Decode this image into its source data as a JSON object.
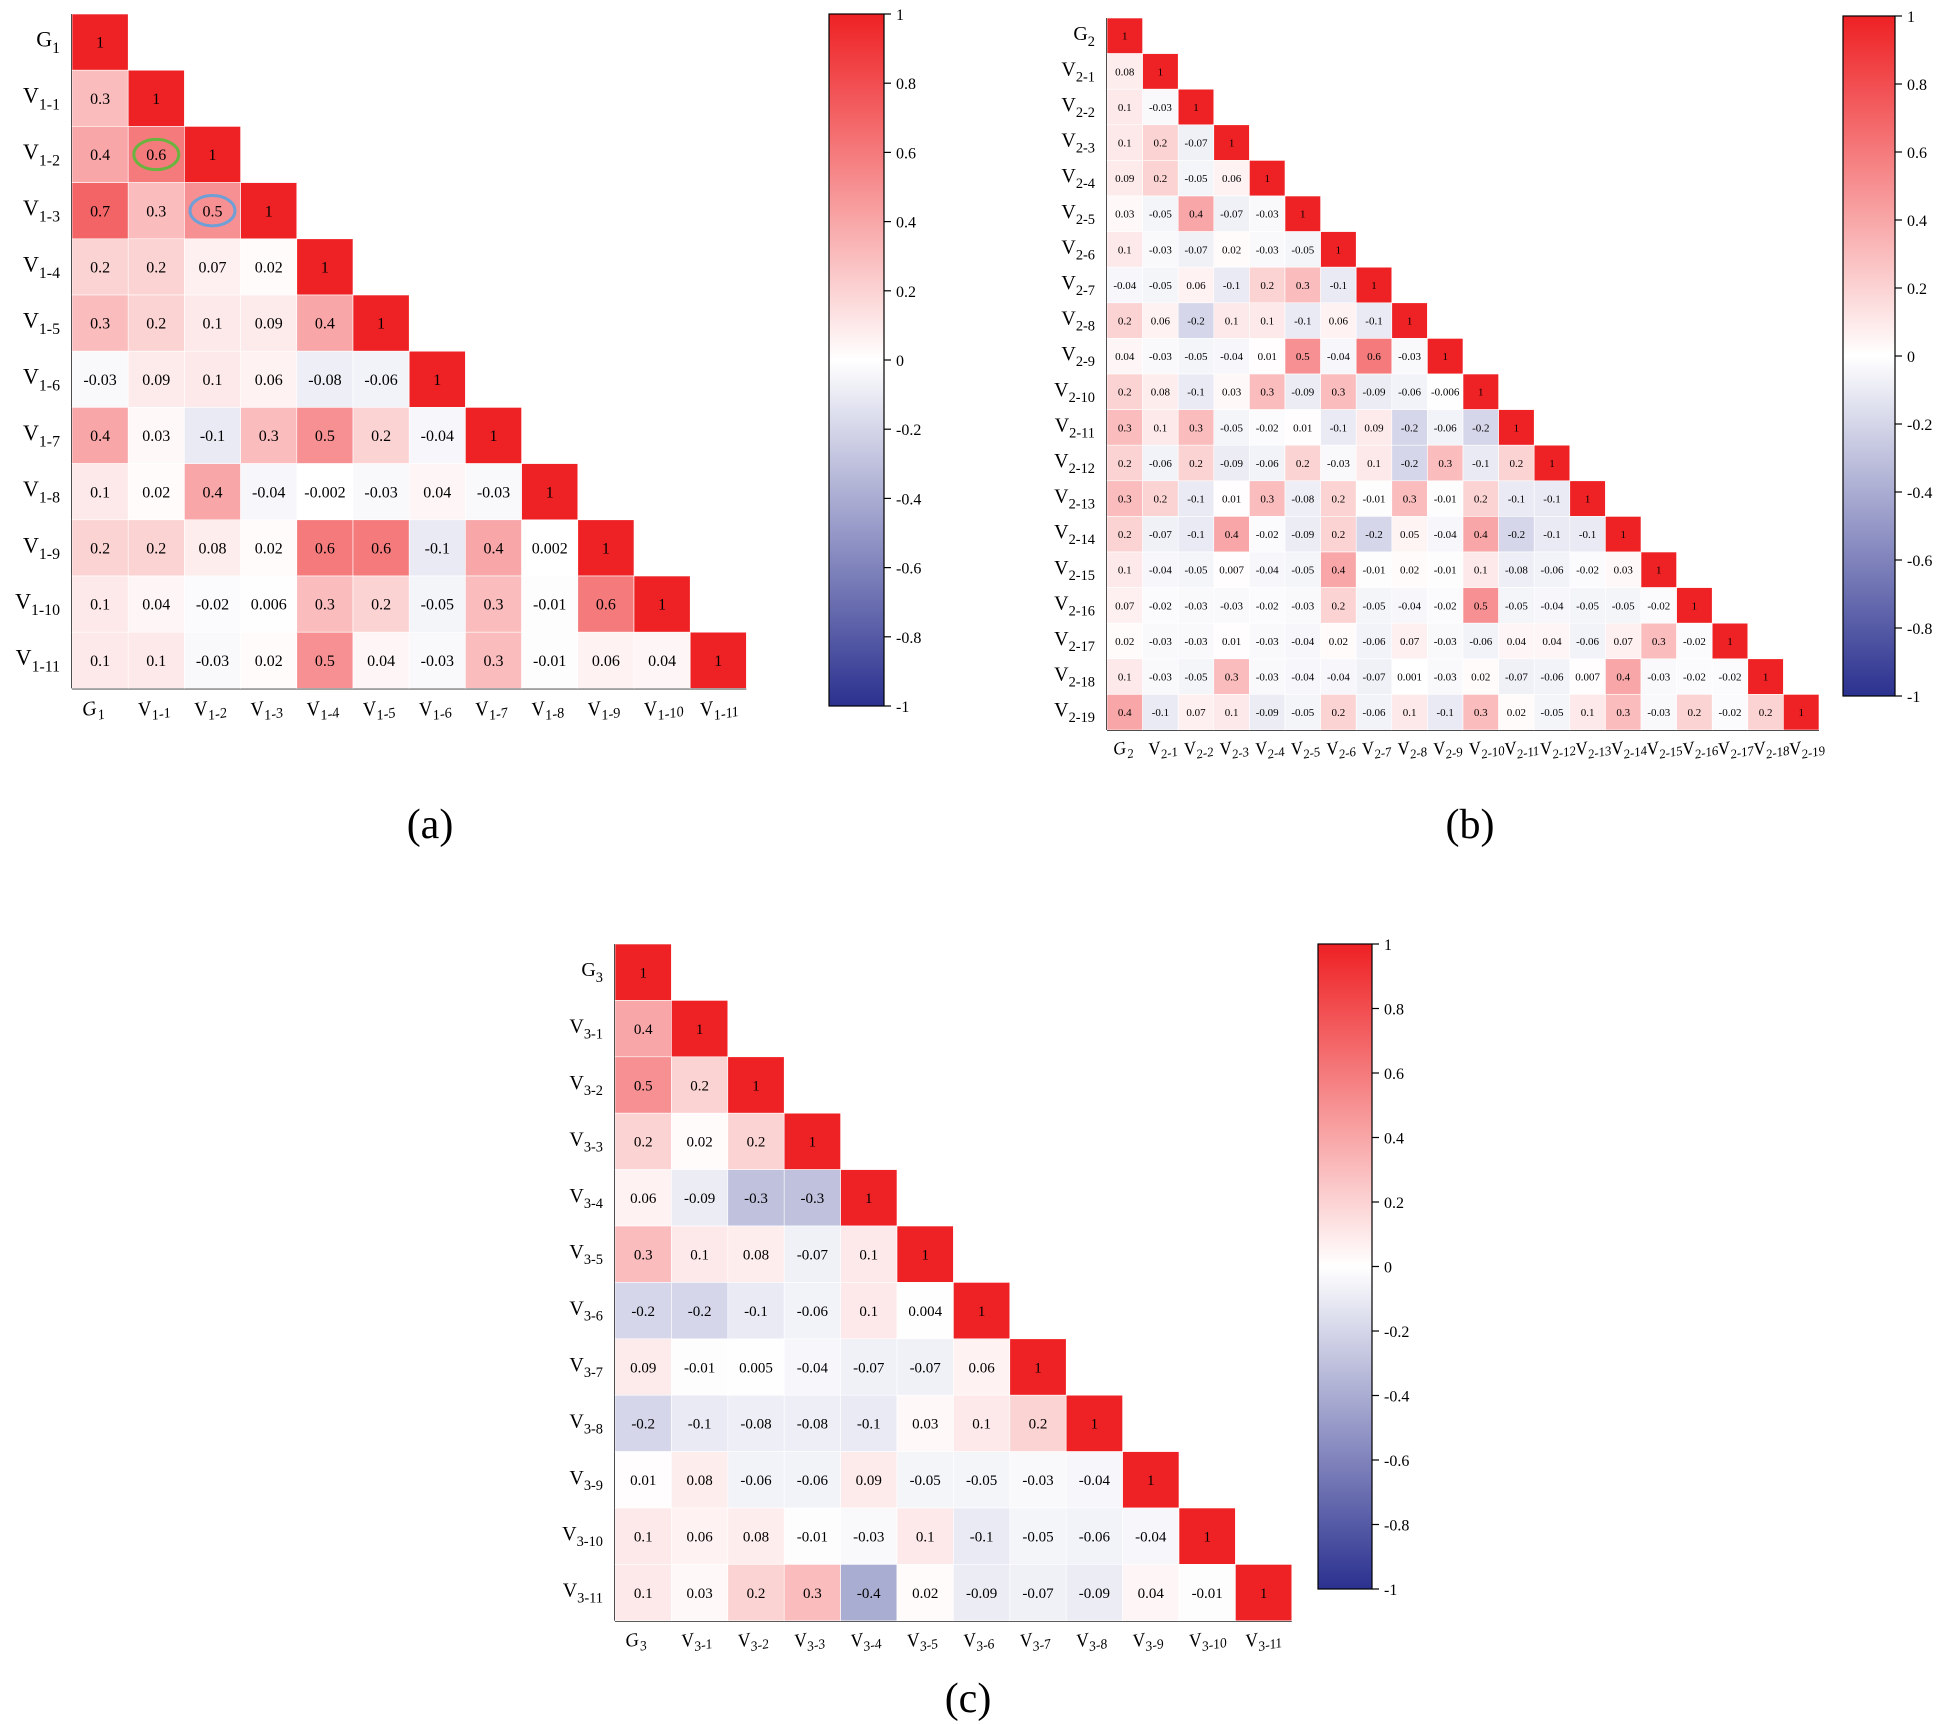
{
  "colorscale": {
    "neg": "#2b318f",
    "mid": "#ffffff",
    "pos": "#ee2124",
    "highlight_green": "#6bb33f",
    "highlight_blue": "#6e9fd6"
  },
  "chart_data": [
    {
      "type": "heatmap",
      "panel_label": "(a)",
      "row_labels": [
        {
          "base": "G",
          "sub": "1"
        },
        {
          "base": "V",
          "sub": "1-1"
        },
        {
          "base": "V",
          "sub": "1-2"
        },
        {
          "base": "V",
          "sub": "1-3"
        },
        {
          "base": "V",
          "sub": "1-4"
        },
        {
          "base": "V",
          "sub": "1-5"
        },
        {
          "base": "V",
          "sub": "1-6"
        },
        {
          "base": "V",
          "sub": "1-7"
        },
        {
          "base": "V",
          "sub": "1-8"
        },
        {
          "base": "V",
          "sub": "1-9"
        },
        {
          "base": "V",
          "sub": "1-10"
        },
        {
          "base": "V",
          "sub": "1-11"
        }
      ],
      "col_labels": [
        {
          "base": "G",
          "sub": "1"
        },
        {
          "base": "V",
          "sub": "1-1"
        },
        {
          "base": "V",
          "sub": "1-2"
        },
        {
          "base": "V",
          "sub": "1-3"
        },
        {
          "base": "V",
          "sub": "1-4"
        },
        {
          "base": "V",
          "sub": "1-5"
        },
        {
          "base": "V",
          "sub": "1-6"
        },
        {
          "base": "V",
          "sub": "1-7"
        },
        {
          "base": "V",
          "sub": "1-8"
        },
        {
          "base": "V",
          "sub": "1-9"
        },
        {
          "base": "V",
          "sub": "1-10"
        },
        {
          "base": "V",
          "sub": "1-11"
        }
      ],
      "matrix": [
        [
          "1"
        ],
        [
          "0.3",
          "1"
        ],
        [
          "0.4",
          "0.6",
          "1"
        ],
        [
          "0.7",
          "0.3",
          "0.5",
          "1"
        ],
        [
          "0.2",
          "0.2",
          "0.07",
          "0.02",
          "1"
        ],
        [
          "0.3",
          "0.2",
          "0.1",
          "0.09",
          "0.4",
          "1"
        ],
        [
          "-0.03",
          "0.09",
          "0.1",
          "0.06",
          "-0.08",
          "-0.06",
          "1"
        ],
        [
          "0.4",
          "0.03",
          "-0.1",
          "0.3",
          "0.5",
          "0.2",
          "-0.04",
          "1"
        ],
        [
          "0.1",
          "0.02",
          "0.4",
          "-0.04",
          "-0.002",
          "-0.03",
          "0.04",
          "-0.03",
          "1"
        ],
        [
          "0.2",
          "0.2",
          "0.08",
          "0.02",
          "0.6",
          "0.6",
          "-0.1",
          "0.4",
          "0.002",
          "1"
        ],
        [
          "0.1",
          "0.04",
          "-0.02",
          "0.006",
          "0.3",
          "0.2",
          "-0.05",
          "0.3",
          "-0.01",
          "0.6",
          "1"
        ],
        [
          "0.1",
          "0.1",
          "-0.03",
          "0.02",
          "0.5",
          "0.04",
          "-0.03",
          "0.3",
          "-0.01",
          "0.06",
          "0.04",
          "1"
        ]
      ],
      "highlights": [
        {
          "row": 2,
          "col": 1,
          "color": "green"
        },
        {
          "row": 3,
          "col": 2,
          "color": "blue"
        }
      ],
      "colorbar": {
        "ticks": [
          "1",
          "0.8",
          "0.6",
          "0.4",
          "0.2",
          "0",
          "-0.2",
          "-0.4",
          "-0.6",
          "-0.8",
          "-1"
        ],
        "range": [
          -1,
          1
        ]
      }
    },
    {
      "type": "heatmap",
      "panel_label": "(b)",
      "row_labels": [
        {
          "base": "G",
          "sub": "2"
        },
        {
          "base": "V",
          "sub": "2-1"
        },
        {
          "base": "V",
          "sub": "2-2"
        },
        {
          "base": "V",
          "sub": "2-3"
        },
        {
          "base": "V",
          "sub": "2-4"
        },
        {
          "base": "V",
          "sub": "2-5"
        },
        {
          "base": "V",
          "sub": "2-6"
        },
        {
          "base": "V",
          "sub": "2-7"
        },
        {
          "base": "V",
          "sub": "2-8"
        },
        {
          "base": "V",
          "sub": "2-9"
        },
        {
          "base": "V",
          "sub": "2-10"
        },
        {
          "base": "V",
          "sub": "2-11"
        },
        {
          "base": "V",
          "sub": "2-12"
        },
        {
          "base": "V",
          "sub": "2-13"
        },
        {
          "base": "V",
          "sub": "2-14"
        },
        {
          "base": "V",
          "sub": "2-15"
        },
        {
          "base": "V",
          "sub": "2-16"
        },
        {
          "base": "V",
          "sub": "2-17"
        },
        {
          "base": "V",
          "sub": "2-18"
        },
        {
          "base": "V",
          "sub": "2-19"
        }
      ],
      "col_labels": [
        {
          "base": "G",
          "sub": "2"
        },
        {
          "base": "V",
          "sub": "2-1"
        },
        {
          "base": "V",
          "sub": "2-2"
        },
        {
          "base": "V",
          "sub": "2-3"
        },
        {
          "base": "V",
          "sub": "2-4"
        },
        {
          "base": "V",
          "sub": "2-5"
        },
        {
          "base": "V",
          "sub": "2-6"
        },
        {
          "base": "V",
          "sub": "2-7"
        },
        {
          "base": "V",
          "sub": "2-8"
        },
        {
          "base": "V",
          "sub": "2-9"
        },
        {
          "base": "V",
          "sub": "2-10"
        },
        {
          "base": "V",
          "sub": "2-11"
        },
        {
          "base": "V",
          "sub": "2-12"
        },
        {
          "base": "V",
          "sub": "2-13"
        },
        {
          "base": "V",
          "sub": "2-14"
        },
        {
          "base": "V",
          "sub": "2-15"
        },
        {
          "base": "V",
          "sub": "2-16"
        },
        {
          "base": "V",
          "sub": "2-17"
        },
        {
          "base": "V",
          "sub": "2-18"
        },
        {
          "base": "V",
          "sub": "2-19"
        }
      ],
      "matrix": [
        [
          "1"
        ],
        [
          "0.08",
          "1"
        ],
        [
          "0.1",
          "-0.03",
          "1"
        ],
        [
          "0.1",
          "0.2",
          "-0.07",
          "1"
        ],
        [
          "0.09",
          "0.2",
          "-0.05",
          "0.06",
          "1"
        ],
        [
          "0.03",
          "-0.05",
          "0.4",
          "-0.07",
          "-0.03",
          "1"
        ],
        [
          "0.1",
          "-0.03",
          "-0.07",
          "0.02",
          "-0.03",
          "-0.05",
          "1"
        ],
        [
          "-0.04",
          "-0.05",
          "0.06",
          "-0.1",
          "0.2",
          "0.3",
          "-0.1",
          "1"
        ],
        [
          "0.2",
          "0.06",
          "-0.2",
          "0.1",
          "0.1",
          "-0.1",
          "0.06",
          "-0.1",
          "1"
        ],
        [
          "0.04",
          "-0.03",
          "-0.05",
          "-0.04",
          "0.01",
          "0.5",
          "-0.04",
          "0.6",
          "-0.03",
          "1"
        ],
        [
          "0.2",
          "0.08",
          "-0.1",
          "0.03",
          "0.3",
          "-0.09",
          "0.3",
          "-0.09",
          "-0.06",
          "-0.006",
          "1"
        ],
        [
          "0.3",
          "0.1",
          "0.3",
          "-0.05",
          "-0.02",
          "0.01",
          "-0.1",
          "0.09",
          "-0.2",
          "-0.06",
          "-0.2",
          "1"
        ],
        [
          "0.2",
          "-0.06",
          "0.2",
          "-0.09",
          "-0.06",
          "0.2",
          "-0.03",
          "0.1",
          "-0.2",
          "0.3",
          "-0.1",
          "0.2",
          "1"
        ],
        [
          "0.3",
          "0.2",
          "-0.1",
          "0.01",
          "0.3",
          "-0.08",
          "0.2",
          "-0.01",
          "0.3",
          "-0.01",
          "0.2",
          "-0.1",
          "-0.1",
          "1"
        ],
        [
          "0.2",
          "-0.07",
          "-0.1",
          "0.4",
          "-0.02",
          "-0.09",
          "0.2",
          "-0.2",
          "0.05",
          "-0.04",
          "0.4",
          "-0.2",
          "-0.1",
          "-0.1",
          "1"
        ],
        [
          "0.1",
          "-0.04",
          "-0.05",
          "0.007",
          "-0.04",
          "-0.05",
          "0.4",
          "-0.01",
          "0.02",
          "-0.01",
          "0.1",
          "-0.08",
          "-0.06",
          "-0.02",
          "0.03",
          "1"
        ],
        [
          "0.07",
          "-0.02",
          "-0.03",
          "-0.03",
          "-0.02",
          "-0.03",
          "0.2",
          "-0.05",
          "-0.04",
          "-0.02",
          "0.5",
          "-0.05",
          "-0.04",
          "-0.05",
          "-0.05",
          "-0.02",
          "1"
        ],
        [
          "0.02",
          "-0.03",
          "-0.03",
          "0.01",
          "-0.03",
          "-0.04",
          "0.02",
          "-0.06",
          "0.07",
          "-0.03",
          "-0.06",
          "0.04",
          "0.04",
          "-0.06",
          "0.07",
          "0.3",
          "-0.02",
          "1"
        ],
        [
          "0.1",
          "-0.03",
          "-0.05",
          "0.3",
          "-0.03",
          "-0.04",
          "-0.04",
          "-0.07",
          "0.001",
          "-0.03",
          "0.02",
          "-0.07",
          "-0.06",
          "0.007",
          "0.4",
          "-0.03",
          "-0.02",
          "-0.02",
          "1"
        ],
        [
          "0.4",
          "-0.1",
          "0.07",
          "0.1",
          "-0.09",
          "-0.05",
          "0.2",
          "-0.06",
          "0.1",
          "-0.1",
          "0.3",
          "0.02",
          "-0.05",
          "0.1",
          "0.3",
          "-0.03",
          "0.2",
          "-0.02",
          "0.2",
          "1"
        ]
      ],
      "highlights": [],
      "colorbar": {
        "ticks": [
          "1",
          "0.8",
          "0.6",
          "0.4",
          "0.2",
          "0",
          "-0.2",
          "-0.4",
          "-0.6",
          "-0.8",
          "-1"
        ],
        "range": [
          -1,
          1
        ]
      }
    },
    {
      "type": "heatmap",
      "panel_label": "(c)",
      "row_labels": [
        {
          "base": "G",
          "sub": "3"
        },
        {
          "base": "V",
          "sub": "3-1"
        },
        {
          "base": "V",
          "sub": "3-2"
        },
        {
          "base": "V",
          "sub": "3-3"
        },
        {
          "base": "V",
          "sub": "3-4"
        },
        {
          "base": "V",
          "sub": "3-5"
        },
        {
          "base": "V",
          "sub": "3-6"
        },
        {
          "base": "V",
          "sub": "3-7"
        },
        {
          "base": "V",
          "sub": "3-8"
        },
        {
          "base": "V",
          "sub": "3-9"
        },
        {
          "base": "V",
          "sub": "3-10"
        },
        {
          "base": "V",
          "sub": "3-11"
        }
      ],
      "col_labels": [
        {
          "base": "G",
          "sub": "3"
        },
        {
          "base": "V",
          "sub": "3-1"
        },
        {
          "base": "V",
          "sub": "3-2"
        },
        {
          "base": "V",
          "sub": "3-3"
        },
        {
          "base": "V",
          "sub": "3-4"
        },
        {
          "base": "V",
          "sub": "3-5"
        },
        {
          "base": "V",
          "sub": "3-6"
        },
        {
          "base": "V",
          "sub": "3-7"
        },
        {
          "base": "V",
          "sub": "3-8"
        },
        {
          "base": "V",
          "sub": "3-9"
        },
        {
          "base": "V",
          "sub": "3-10"
        },
        {
          "base": "V",
          "sub": "3-11"
        }
      ],
      "matrix": [
        [
          "1"
        ],
        [
          "0.4",
          "1"
        ],
        [
          "0.5",
          "0.2",
          "1"
        ],
        [
          "0.2",
          "0.02",
          "0.2",
          "1"
        ],
        [
          "0.06",
          "-0.09",
          "-0.3",
          "-0.3",
          "1"
        ],
        [
          "0.3",
          "0.1",
          "0.08",
          "-0.07",
          "0.1",
          "1"
        ],
        [
          "-0.2",
          "-0.2",
          "-0.1",
          "-0.06",
          "0.1",
          "0.004",
          "1"
        ],
        [
          "0.09",
          "-0.01",
          "0.005",
          "-0.04",
          "-0.07",
          "-0.07",
          "0.06",
          "1"
        ],
        [
          "-0.2",
          "-0.1",
          "-0.08",
          "-0.08",
          "-0.1",
          "0.03",
          "0.1",
          "0.2",
          "1"
        ],
        [
          "0.01",
          "0.08",
          "-0.06",
          "-0.06",
          "0.09",
          "-0.05",
          "-0.05",
          "-0.03",
          "-0.04",
          "1"
        ],
        [
          "0.1",
          "0.06",
          "0.08",
          "-0.01",
          "-0.03",
          "0.1",
          "-0.1",
          "-0.05",
          "-0.06",
          "-0.04",
          "1"
        ],
        [
          "0.1",
          "0.03",
          "0.2",
          "0.3",
          "-0.4",
          "0.02",
          "-0.09",
          "-0.07",
          "-0.09",
          "0.04",
          "-0.01",
          "1"
        ]
      ],
      "highlights": [],
      "colorbar": {
        "ticks": [
          "1",
          "0.8",
          "0.6",
          "0.4",
          "0.2",
          "0",
          "-0.2",
          "-0.4",
          "-0.6",
          "-0.8",
          "-1"
        ],
        "range": [
          -1,
          1
        ]
      }
    }
  ]
}
